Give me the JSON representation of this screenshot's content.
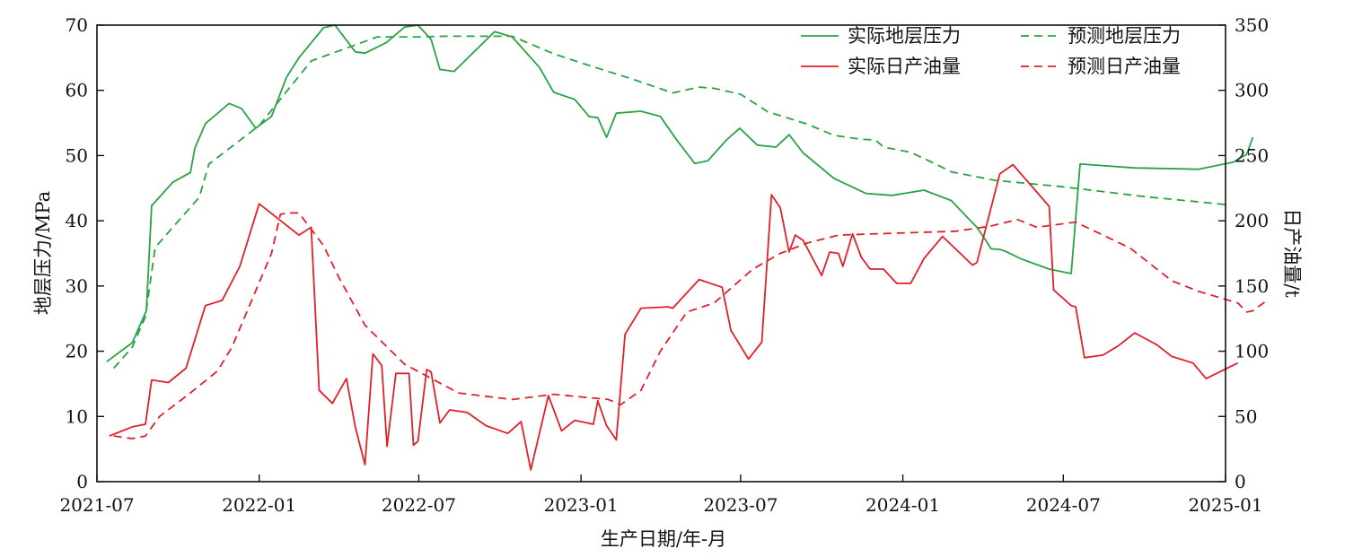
{
  "chart_data": {
    "type": "line",
    "xlabel": "生产日期/年-月",
    "ylabel_left": "地层压力/MPa",
    "ylabel_right": "日产油量/t",
    "x_ticks": [
      "2021-07",
      "2022-01",
      "2022-07",
      "2023-01",
      "2023-07",
      "2024-01",
      "2024-07",
      "2025-01"
    ],
    "xlim": [
      "2021-07",
      "2025-01"
    ],
    "ylim_left": [
      0,
      70
    ],
    "ylim_right": [
      0,
      350
    ],
    "y_ticks_left": [
      0,
      10,
      20,
      30,
      40,
      50,
      60,
      70
    ],
    "y_ticks_right": [
      0,
      50,
      100,
      150,
      200,
      250,
      300,
      350
    ],
    "grid": false,
    "legend_position": "top-right",
    "colors": {
      "pressure": "#2aa344",
      "oil": "#e0202a"
    },
    "series": [
      {
        "name": "实际地层压力",
        "axis": "left",
        "style": "solid",
        "color": "#2aa344",
        "points": [
          [
            "2021-07-12",
            18.4
          ],
          [
            "2021-08-10",
            21.3
          ],
          [
            "2021-08-26",
            26.2
          ],
          [
            "2021-09-01",
            42.3
          ],
          [
            "2021-09-25",
            45.9
          ],
          [
            "2021-10-15",
            47.4
          ],
          [
            "2021-10-20",
            51.1
          ],
          [
            "2021-11-01",
            54.9
          ],
          [
            "2021-11-28",
            58.0
          ],
          [
            "2021-12-12",
            57.2
          ],
          [
            "2021-12-28",
            54.2
          ],
          [
            "2022-01-15",
            56.0
          ],
          [
            "2022-02-01",
            62.0
          ],
          [
            "2022-02-15",
            65.0
          ],
          [
            "2022-03-15",
            69.6
          ],
          [
            "2022-03-28",
            70.0
          ],
          [
            "2022-04-20",
            65.9
          ],
          [
            "2022-05-01",
            65.7
          ],
          [
            "2022-05-25",
            67.3
          ],
          [
            "2022-06-15",
            69.7
          ],
          [
            "2022-06-30",
            70.0
          ],
          [
            "2022-07-15",
            67.8
          ],
          [
            "2022-07-25",
            63.2
          ],
          [
            "2022-08-10",
            62.9
          ],
          [
            "2022-09-25",
            69.0
          ],
          [
            "2022-10-15",
            68.2
          ],
          [
            "2022-11-15",
            63.5
          ],
          [
            "2022-12-01",
            59.7
          ],
          [
            "2022-12-25",
            58.6
          ],
          [
            "2023-01-10",
            56.0
          ],
          [
            "2023-01-20",
            55.8
          ],
          [
            "2023-01-30",
            52.8
          ],
          [
            "2023-02-10",
            56.5
          ],
          [
            "2023-03-10",
            56.8
          ],
          [
            "2023-04-01",
            56.0
          ],
          [
            "2023-04-20",
            52.3
          ],
          [
            "2023-05-10",
            48.8
          ],
          [
            "2023-05-25",
            49.2
          ],
          [
            "2023-06-15",
            52.4
          ],
          [
            "2023-06-30",
            54.2
          ],
          [
            "2023-07-20",
            51.6
          ],
          [
            "2023-08-10",
            51.3
          ],
          [
            "2023-08-25",
            53.2
          ],
          [
            "2023-09-10",
            50.4
          ],
          [
            "2023-10-15",
            46.5
          ],
          [
            "2023-11-20",
            44.2
          ],
          [
            "2023-12-20",
            43.9
          ],
          [
            "2024-01-25",
            44.7
          ],
          [
            "2024-02-25",
            43.1
          ],
          [
            "2024-03-15",
            40.4
          ],
          [
            "2024-03-25",
            39.0
          ],
          [
            "2024-04-05",
            36.8
          ],
          [
            "2024-04-10",
            35.7
          ],
          [
            "2024-04-20",
            35.6
          ],
          [
            "2024-04-25",
            35.4
          ],
          [
            "2024-05-15",
            34.1
          ],
          [
            "2024-06-15",
            32.6
          ],
          [
            "2024-07-10",
            31.9
          ],
          [
            "2024-07-20",
            48.7
          ],
          [
            "2024-09-20",
            48.1
          ],
          [
            "2024-12-01",
            47.9
          ],
          [
            "2025-01-10",
            49.0
          ],
          [
            "2025-01-25",
            50.2
          ],
          [
            "2025-02-01",
            52.8
          ]
        ]
      },
      {
        "name": "预测地层压力",
        "axis": "left",
        "style": "dashed",
        "color": "#2aa344",
        "points": [
          [
            "2021-07-20",
            17.4
          ],
          [
            "2021-08-10",
            20.6
          ],
          [
            "2021-08-25",
            25.3
          ],
          [
            "2021-09-05",
            35.9
          ],
          [
            "2021-09-25",
            39.0
          ],
          [
            "2021-10-25",
            43.6
          ],
          [
            "2021-11-05",
            48.7
          ],
          [
            "2022-01-01",
            54.6
          ],
          [
            "2022-03-01",
            64.5
          ],
          [
            "2022-05-15",
            68.2
          ],
          [
            "2022-07-01",
            68.2
          ],
          [
            "2022-08-01",
            68.3
          ],
          [
            "2022-09-01",
            68.3
          ],
          [
            "2022-10-15",
            68.3
          ],
          [
            "2022-12-01",
            65.6
          ],
          [
            "2023-01-15",
            63.6
          ],
          [
            "2023-03-01",
            61.7
          ],
          [
            "2023-04-15",
            59.6
          ],
          [
            "2023-05-15",
            60.5
          ],
          [
            "2023-06-01",
            60.3
          ],
          [
            "2023-07-01",
            59.4
          ],
          [
            "2023-08-01",
            56.7
          ],
          [
            "2023-09-15",
            54.8
          ],
          [
            "2023-10-15",
            53.1
          ],
          [
            "2023-11-15",
            52.5
          ],
          [
            "2023-12-01",
            52.4
          ],
          [
            "2023-12-10",
            51.3
          ],
          [
            "2024-01-10",
            50.5
          ],
          [
            "2024-02-01",
            49.1
          ],
          [
            "2024-02-25",
            47.5
          ],
          [
            "2024-04-15",
            46.2
          ],
          [
            "2024-07-01",
            45.2
          ],
          [
            "2024-10-01",
            43.7
          ],
          [
            "2025-01-01",
            42.5
          ]
        ]
      },
      {
        "name": "实际日产油量",
        "axis": "right",
        "style": "solid",
        "color": "#e0202a",
        "points": [
          [
            "2021-07-15",
            35
          ],
          [
            "2021-08-10",
            42
          ],
          [
            "2021-08-25",
            44
          ],
          [
            "2021-09-01",
            78
          ],
          [
            "2021-09-20",
            76
          ],
          [
            "2021-10-10",
            87
          ],
          [
            "2021-11-01",
            135
          ],
          [
            "2021-11-20",
            139
          ],
          [
            "2021-12-10",
            165
          ],
          [
            "2022-01-01",
            213
          ],
          [
            "2022-02-15",
            189
          ],
          [
            "2022-03-01",
            195
          ],
          [
            "2022-03-10",
            70
          ],
          [
            "2022-03-25",
            60
          ],
          [
            "2022-04-10",
            79
          ],
          [
            "2022-04-20",
            42
          ],
          [
            "2022-05-01",
            13
          ],
          [
            "2022-05-10",
            98
          ],
          [
            "2022-05-20",
            89
          ],
          [
            "2022-05-26",
            27
          ],
          [
            "2022-06-05",
            83
          ],
          [
            "2022-06-20",
            83
          ],
          [
            "2022-06-25",
            28
          ],
          [
            "2022-06-30",
            31
          ],
          [
            "2022-07-10",
            86
          ],
          [
            "2022-07-15",
            84
          ],
          [
            "2022-07-25",
            45
          ],
          [
            "2022-08-05",
            55
          ],
          [
            "2022-08-25",
            53
          ],
          [
            "2022-09-15",
            43
          ],
          [
            "2022-10-10",
            37
          ],
          [
            "2022-10-25",
            46
          ],
          [
            "2022-11-05",
            9
          ],
          [
            "2022-11-25",
            66
          ],
          [
            "2022-12-10",
            39
          ],
          [
            "2022-12-25",
            47
          ],
          [
            "2023-01-15",
            44
          ],
          [
            "2023-01-20",
            62
          ],
          [
            "2023-01-30",
            43
          ],
          [
            "2023-02-10",
            32
          ],
          [
            "2023-02-20",
            113
          ],
          [
            "2023-03-10",
            133
          ],
          [
            "2023-04-10",
            134
          ],
          [
            "2023-04-15",
            133
          ],
          [
            "2023-05-15",
            155
          ],
          [
            "2023-06-10",
            149
          ],
          [
            "2023-06-20",
            116
          ],
          [
            "2023-07-10",
            94
          ],
          [
            "2023-07-25",
            107
          ],
          [
            "2023-08-05",
            220
          ],
          [
            "2023-08-15",
            210
          ],
          [
            "2023-08-25",
            176
          ],
          [
            "2023-09-01",
            189
          ],
          [
            "2023-09-10",
            185
          ],
          [
            "2023-10-01",
            158
          ],
          [
            "2023-10-10",
            176
          ],
          [
            "2023-10-20",
            175
          ],
          [
            "2023-10-25",
            165
          ],
          [
            "2023-11-05",
            190
          ],
          [
            "2023-11-15",
            172
          ],
          [
            "2023-11-25",
            163
          ],
          [
            "2023-12-10",
            163
          ],
          [
            "2023-12-25",
            152
          ],
          [
            "2024-01-10",
            152
          ],
          [
            "2024-01-25",
            171
          ],
          [
            "2024-02-15",
            188
          ],
          [
            "2024-03-20",
            166
          ],
          [
            "2024-03-25",
            168
          ],
          [
            "2024-04-20",
            236
          ],
          [
            "2024-05-05",
            243
          ],
          [
            "2024-06-15",
            211
          ],
          [
            "2024-06-20",
            147
          ],
          [
            "2024-07-10",
            135
          ],
          [
            "2024-07-15",
            134
          ],
          [
            "2024-07-25",
            95
          ],
          [
            "2024-08-15",
            97
          ],
          [
            "2024-09-01",
            104
          ],
          [
            "2024-09-20",
            114
          ],
          [
            "2024-10-15",
            105
          ],
          [
            "2024-11-01",
            96
          ],
          [
            "2024-11-25",
            91
          ],
          [
            "2024-12-10",
            79
          ],
          [
            "2024-12-25",
            84
          ],
          [
            "2025-01-15",
            91
          ]
        ]
      },
      {
        "name": "预测日产油量",
        "axis": "right",
        "style": "dashed",
        "color": "#e0202a",
        "points": [
          [
            "2021-07-20",
            35
          ],
          [
            "2021-08-10",
            33
          ],
          [
            "2021-08-25",
            35
          ],
          [
            "2021-09-10",
            50
          ],
          [
            "2021-10-15",
            68
          ],
          [
            "2021-11-15",
            85
          ],
          [
            "2021-12-01",
            103
          ],
          [
            "2022-01-15",
            175
          ],
          [
            "2022-01-25",
            205
          ],
          [
            "2022-02-01",
            206
          ],
          [
            "2022-02-15",
            206
          ],
          [
            "2022-03-15",
            181
          ],
          [
            "2022-04-01",
            157
          ],
          [
            "2022-05-01",
            120
          ],
          [
            "2022-06-15",
            90
          ],
          [
            "2022-08-15",
            68
          ],
          [
            "2022-10-15",
            63
          ],
          [
            "2022-12-01",
            67
          ],
          [
            "2023-02-01",
            63
          ],
          [
            "2023-02-15",
            59
          ],
          [
            "2023-03-10",
            70
          ],
          [
            "2023-04-01",
            100
          ],
          [
            "2023-05-01",
            130
          ],
          [
            "2023-06-01",
            137
          ],
          [
            "2023-07-15",
            163
          ],
          [
            "2023-08-15",
            175
          ],
          [
            "2023-09-15",
            183
          ],
          [
            "2023-10-20",
            189
          ],
          [
            "2023-12-01",
            190
          ],
          [
            "2024-03-01",
            192
          ],
          [
            "2024-04-10",
            196
          ],
          [
            "2024-05-10",
            201
          ],
          [
            "2024-06-01",
            195
          ],
          [
            "2024-07-15",
            199
          ],
          [
            "2024-09-15",
            179
          ],
          [
            "2024-11-01",
            154
          ],
          [
            "2024-12-01",
            146
          ],
          [
            "2025-01-15",
            137
          ],
          [
            "2025-01-25",
            130
          ],
          [
            "2025-02-01",
            131
          ],
          [
            "2025-02-15",
            138
          ]
        ]
      }
    ]
  }
}
